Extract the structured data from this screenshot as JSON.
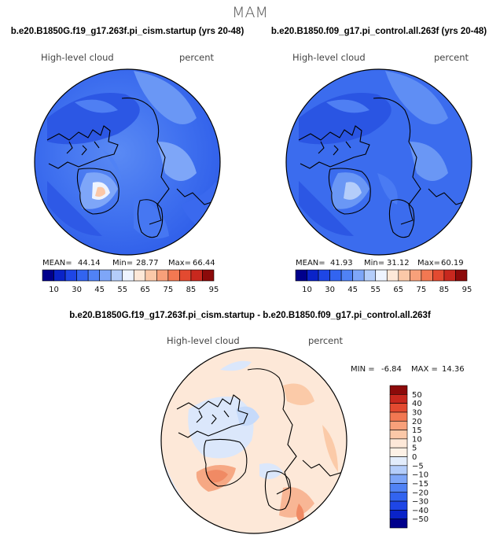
{
  "chart_data": [
    {
      "type": "heatmap",
      "title": "b.e20.B1850G.f19_g17.263f.pi_cism.startup (yrs 20-48)",
      "variable": "High-level cloud",
      "units": "percent",
      "stats": {
        "mean_label": "MEAN=",
        "mean": "44.14",
        "min_label": "Min=",
        "min": "28.77",
        "max_label": "Max=",
        "max": "66.44"
      },
      "colorbar_ticks": [
        "10",
        "30",
        "45",
        "55",
        "65",
        "75",
        "85",
        "95"
      ],
      "colorbar_colors": [
        "#00008c",
        "#0a23c8",
        "#1e46e6",
        "#3264f0",
        "#5082f5",
        "#7ea6f8",
        "#b4cdfa",
        "#eef4ff",
        "#fde8d8",
        "#fbc8a8",
        "#f8a07a",
        "#f27852",
        "#e34a30",
        "#c8281e",
        "#8c0a0a"
      ],
      "proj": "polar stereographic, North Pole"
    },
    {
      "type": "heatmap",
      "title": "b.e20.B1850.f09_g17.pi_control.all.263f (yrs 20-48)",
      "variable": "High-level cloud",
      "units": "percent",
      "stats": {
        "mean_label": "MEAN=",
        "mean": "41.93",
        "min_label": "Min=",
        "min": "31.12",
        "max_label": "Max=",
        "max": "60.19"
      },
      "colorbar_ticks": [
        "10",
        "30",
        "45",
        "55",
        "65",
        "75",
        "85",
        "95"
      ],
      "colorbar_colors": [
        "#00008c",
        "#0a23c8",
        "#1e46e6",
        "#3264f0",
        "#5082f5",
        "#7ea6f8",
        "#b4cdfa",
        "#eef4ff",
        "#fde8d8",
        "#fbc8a8",
        "#f8a07a",
        "#f27852",
        "#e34a30",
        "#c8281e",
        "#8c0a0a"
      ],
      "proj": "polar stereographic, North Pole"
    },
    {
      "type": "heatmap",
      "title": "b.e20.B1850G.f19_g17.263f.pi_cism.startup - b.e20.B1850.f09_g17.pi_control.all.263f",
      "variable": "High-level cloud",
      "units": "percent",
      "stats": {
        "min_label": "MIN =",
        "min": "-6.84",
        "max_label": "MAX =",
        "max": "14.36"
      },
      "colorbar_ticks": [
        "50",
        "40",
        "30",
        "20",
        "15",
        "10",
        "5",
        "0",
        "−5",
        "−10",
        "−15",
        "−20",
        "−30",
        "−40",
        "−50"
      ],
      "colorbar_colors": [
        "#8c0a0a",
        "#c8281e",
        "#e34a30",
        "#f27852",
        "#f8a07a",
        "#fbc8a8",
        "#fde8d8",
        "#fdf1e6",
        "#e2ecfb",
        "#b4cdfa",
        "#7ea6f8",
        "#5082f5",
        "#3264f0",
        "#1e46e6",
        "#0a23c8",
        "#00008c"
      ]
    }
  ],
  "page": {
    "season": "MAM"
  }
}
